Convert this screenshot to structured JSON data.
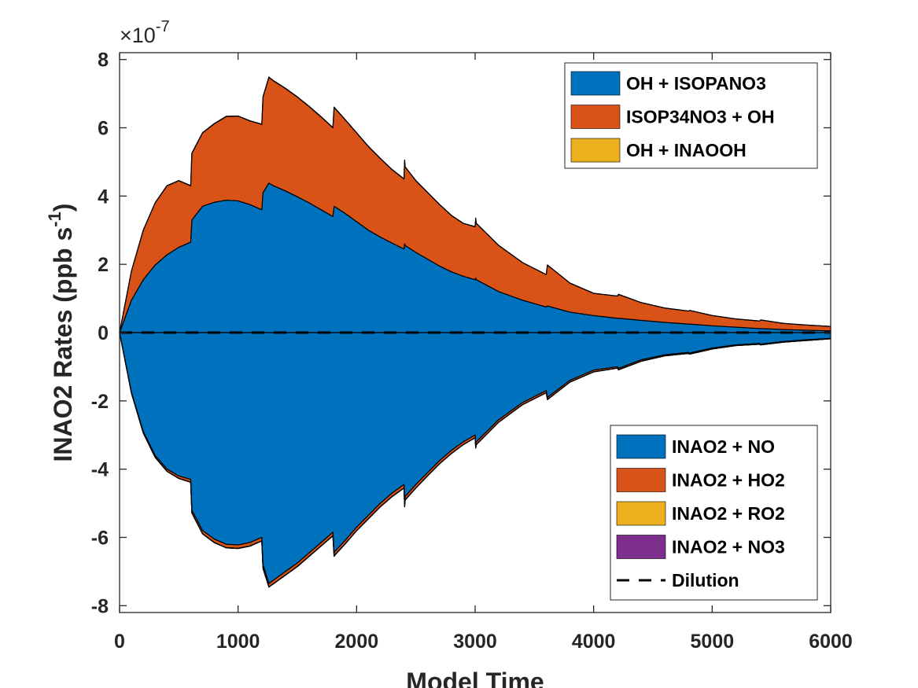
{
  "chart_data": {
    "type": "area",
    "xlabel": "Model Time",
    "ylabel": "INAO2 Rates (ppb s",
    "ylabel_sup": "-1",
    "ylabel_close": ")",
    "exponent_base": "×10",
    "exponent_power": "-7",
    "scale": 1e-07,
    "xlim": [
      0,
      6000
    ],
    "ylim": [
      -8.2,
      8.2
    ],
    "xticks": [
      0,
      1000,
      2000,
      3000,
      4000,
      5000,
      6000
    ],
    "yticks": [
      -8,
      -6,
      -4,
      -2,
      0,
      2,
      4,
      6,
      8
    ],
    "x": [
      0,
      100,
      200,
      300,
      400,
      500,
      600,
      610,
      700,
      800,
      900,
      1000,
      1100,
      1200,
      1210,
      1260,
      1300,
      1400,
      1500,
      1600,
      1700,
      1800,
      1810,
      1820,
      1900,
      2000,
      2100,
      2200,
      2300,
      2400,
      2405,
      2410,
      2500,
      2600,
      2700,
      2800,
      2900,
      3000,
      3005,
      3010,
      3200,
      3400,
      3600,
      3610,
      3800,
      4000,
      4200,
      4210,
      4400,
      4600,
      4800,
      4810,
      5000,
      5200,
      5400,
      5410,
      5600,
      5800,
      6000
    ],
    "positive_series": [
      {
        "name": "OH + ISOPANO3",
        "color": "#0072BD",
        "values": [
          0,
          0.95,
          1.55,
          1.98,
          2.28,
          2.5,
          2.65,
          3.3,
          3.7,
          3.82,
          3.88,
          3.86,
          3.75,
          3.6,
          4.1,
          4.38,
          4.3,
          4.15,
          3.98,
          3.8,
          3.6,
          3.4,
          3.7,
          3.68,
          3.5,
          3.25,
          3.0,
          2.8,
          2.62,
          2.45,
          2.6,
          2.55,
          2.35,
          2.15,
          1.95,
          1.78,
          1.65,
          1.55,
          1.6,
          1.55,
          1.2,
          0.95,
          0.75,
          0.78,
          0.6,
          0.5,
          0.42,
          0.42,
          0.36,
          0.3,
          0.25,
          0.25,
          0.2,
          0.16,
          0.12,
          0.12,
          0.09,
          0.07,
          0.05
        ]
      },
      {
        "name": "ISOP34NO3 + OH",
        "color": "#D95319",
        "values": [
          0,
          0.85,
          1.45,
          1.82,
          2.02,
          1.95,
          1.65,
          1.95,
          2.15,
          2.3,
          2.45,
          2.48,
          2.45,
          2.5,
          2.8,
          3.1,
          3.07,
          3.0,
          2.92,
          2.82,
          2.72,
          2.6,
          2.9,
          2.88,
          2.75,
          2.6,
          2.45,
          2.3,
          2.15,
          2.05,
          2.45,
          2.3,
          2.1,
          1.95,
          1.8,
          1.65,
          1.55,
          1.55,
          1.75,
          1.65,
          1.35,
          1.1,
          0.95,
          1.2,
          0.85,
          0.65,
          0.65,
          0.7,
          0.52,
          0.42,
          0.38,
          0.4,
          0.3,
          0.24,
          0.22,
          0.25,
          0.18,
          0.15,
          0.13
        ]
      },
      {
        "name": "OH + INAOOH",
        "color": "#EDB120",
        "values": [
          0,
          0.002,
          0.004,
          0.005,
          0.006,
          0.006,
          0.006,
          0.007,
          0.007,
          0.007,
          0.007,
          0.007,
          0.007,
          0.007,
          0.008,
          0.008,
          0.008,
          0.008,
          0.008,
          0.008,
          0.007,
          0.007,
          0.007,
          0.007,
          0.007,
          0.007,
          0.006,
          0.006,
          0.006,
          0.006,
          0.006,
          0.006,
          0.005,
          0.005,
          0.005,
          0.005,
          0.004,
          0.004,
          0.004,
          0.004,
          0.003,
          0.003,
          0.002,
          0.002,
          0.002,
          0.002,
          0.001,
          0.001,
          0.001,
          0.001,
          0.001,
          0.001,
          0.001,
          0.001,
          0.001,
          0.001,
          0.001,
          0.001,
          0.001
        ]
      }
    ],
    "negative_series": [
      {
        "name": "INAO2 + NO",
        "color": "#0072BD",
        "values": [
          0,
          -1.75,
          -2.9,
          -3.6,
          -4.0,
          -4.2,
          -4.3,
          -5.2,
          -5.8,
          -6.05,
          -6.2,
          -6.22,
          -6.15,
          -6.0,
          -6.8,
          -7.35,
          -7.25,
          -7.0,
          -6.75,
          -6.45,
          -6.15,
          -5.85,
          -6.45,
          -6.4,
          -6.1,
          -5.7,
          -5.35,
          -5.0,
          -4.7,
          -4.45,
          -5.0,
          -4.8,
          -4.45,
          -4.1,
          -3.75,
          -3.45,
          -3.2,
          -3.0,
          -3.3,
          -3.2,
          -2.55,
          -2.05,
          -1.7,
          -1.9,
          -1.4,
          -1.1,
          -1.0,
          -1.05,
          -0.8,
          -0.65,
          -0.58,
          -0.6,
          -0.45,
          -0.36,
          -0.32,
          -0.34,
          -0.26,
          -0.21,
          -0.17
        ]
      },
      {
        "name": "INAO2 + HO2",
        "color": "#D95319",
        "values": [
          0,
          -0.02,
          -0.04,
          -0.05,
          -0.06,
          -0.07,
          -0.08,
          -0.08,
          -0.09,
          -0.1,
          -0.1,
          -0.1,
          -0.1,
          -0.1,
          -0.1,
          -0.1,
          -0.1,
          -0.1,
          -0.1,
          -0.1,
          -0.1,
          -0.1,
          -0.1,
          -0.1,
          -0.1,
          -0.1,
          -0.1,
          -0.1,
          -0.1,
          -0.1,
          -0.1,
          -0.1,
          -0.1,
          -0.09,
          -0.09,
          -0.09,
          -0.08,
          -0.08,
          -0.08,
          -0.08,
          -0.07,
          -0.06,
          -0.06,
          -0.06,
          -0.05,
          -0.05,
          -0.04,
          -0.04,
          -0.04,
          -0.03,
          -0.03,
          -0.03,
          -0.03,
          -0.02,
          -0.02,
          -0.02,
          -0.02,
          -0.02,
          -0.01
        ]
      },
      {
        "name": "INAO2 + RO2",
        "color": "#EDB120",
        "values": [
          0,
          -0.002,
          -0.003,
          -0.004,
          -0.004,
          -0.004,
          -0.004,
          -0.005,
          -0.005,
          -0.005,
          -0.005,
          -0.005,
          -0.005,
          -0.005,
          -0.005,
          -0.005,
          -0.005,
          -0.005,
          -0.005,
          -0.005,
          -0.005,
          -0.005,
          -0.005,
          -0.005,
          -0.005,
          -0.005,
          -0.004,
          -0.004,
          -0.004,
          -0.004,
          -0.004,
          -0.004,
          -0.004,
          -0.003,
          -0.003,
          -0.003,
          -0.003,
          -0.003,
          -0.003,
          -0.003,
          -0.002,
          -0.002,
          -0.002,
          -0.002,
          -0.002,
          -0.001,
          -0.001,
          -0.001,
          -0.001,
          -0.001,
          -0.001,
          -0.001,
          -0.001,
          -0.001,
          -0.001,
          -0.001,
          -0.001,
          -0.001,
          -0.001
        ]
      },
      {
        "name": "INAO2 + NO3",
        "color": "#7E2F8E",
        "values": [
          0,
          -0.001,
          -0.001,
          -0.001,
          -0.001,
          -0.001,
          -0.001,
          -0.001,
          -0.001,
          -0.001,
          -0.001,
          -0.001,
          -0.001,
          -0.001,
          -0.001,
          -0.001,
          -0.001,
          -0.001,
          -0.001,
          -0.001,
          -0.001,
          -0.001,
          -0.001,
          -0.001,
          -0.001,
          -0.001,
          -0.001,
          -0.001,
          -0.001,
          -0.001,
          -0.001,
          -0.001,
          -0.001,
          -0.001,
          -0.001,
          -0.001,
          -0.001,
          -0.001,
          -0.001,
          -0.001,
          -0.001,
          -0.001,
          -0.001,
          -0.001,
          -0.001,
          -0.001,
          -0.001,
          -0.001,
          -0.001,
          -0.001,
          -0.001,
          -0.001,
          -0.001,
          -0.001,
          -0.001,
          -0.001,
          -0.001,
          -0.001,
          -0.001
        ]
      }
    ],
    "dilution": {
      "name": "Dilution",
      "style": "dashed",
      "color": "#000000",
      "value": 0
    },
    "legend_top": [
      "OH + ISOPANO3",
      "ISOP34NO3 + OH",
      "OH + INAOOH"
    ],
    "legend_bottom": [
      "INAO2 + NO",
      "INAO2 + HO2",
      "INAO2 + RO2",
      "INAO2 + NO3",
      "Dilution"
    ],
    "legend_top_placement": "top-right",
    "legend_bottom_placement": "bottom-right",
    "grid": false
  }
}
